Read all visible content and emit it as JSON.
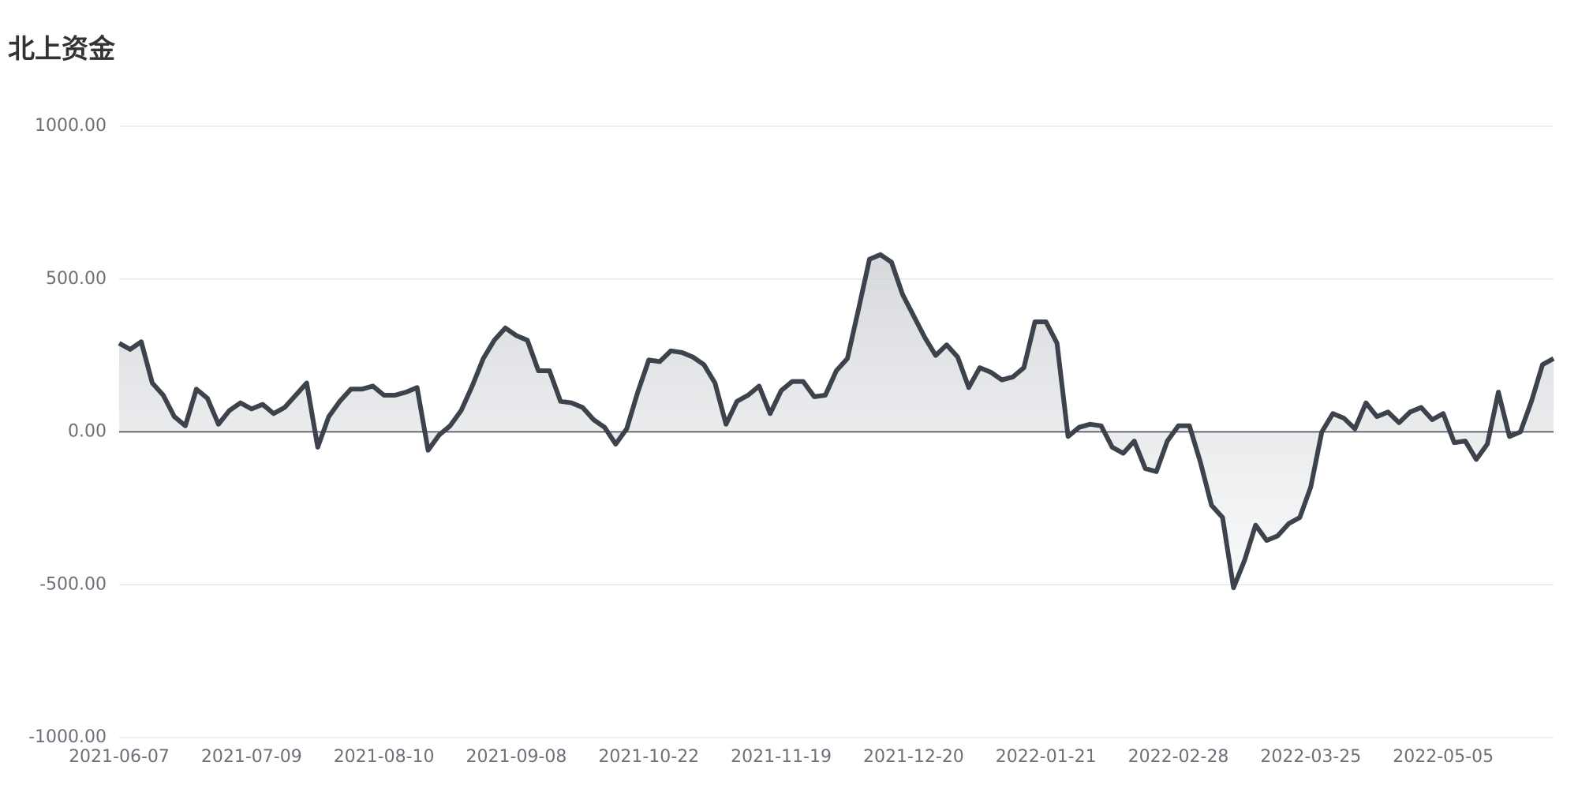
{
  "chart_data": {
    "type": "line",
    "title": "北上资金",
    "color": "#3c434c",
    "area": true,
    "grid": true,
    "ylim": [
      -1000,
      1000
    ],
    "yticks": [
      {
        "value": -1000,
        "label": "-1000.00"
      },
      {
        "value": -500,
        "label": "-500.00"
      },
      {
        "value": 0,
        "label": "0.00"
      },
      {
        "value": 500,
        "label": "500.00"
      },
      {
        "value": 1000,
        "label": "1000.00"
      }
    ],
    "categories": [
      "2021-06-07",
      null,
      null,
      null,
      null,
      null,
      null,
      null,
      null,
      null,
      null,
      null,
      "2021-07-09",
      null,
      null,
      null,
      null,
      null,
      null,
      null,
      null,
      null,
      null,
      null,
      "2021-08-10",
      null,
      null,
      null,
      null,
      null,
      null,
      null,
      null,
      null,
      null,
      null,
      "2021-09-08",
      null,
      null,
      null,
      null,
      null,
      null,
      null,
      null,
      null,
      null,
      null,
      "2021-10-22",
      null,
      null,
      null,
      null,
      null,
      null,
      null,
      null,
      null,
      null,
      null,
      "2021-11-19",
      null,
      null,
      null,
      null,
      null,
      null,
      null,
      null,
      null,
      null,
      null,
      "2021-12-20",
      null,
      null,
      null,
      null,
      null,
      null,
      null,
      null,
      null,
      null,
      null,
      "2022-01-21",
      null,
      null,
      null,
      null,
      null,
      null,
      null,
      null,
      null,
      null,
      null,
      "2022-02-28",
      null,
      null,
      null,
      null,
      null,
      null,
      null,
      null,
      null,
      null,
      null,
      "2022-03-25",
      null,
      null,
      null,
      null,
      null,
      null,
      null,
      null,
      null,
      null,
      null,
      "2022-05-05",
      null,
      null,
      null,
      null,
      null,
      null,
      null,
      null,
      null,
      null
    ],
    "values": [
      290,
      270,
      295,
      160,
      120,
      50,
      20,
      140,
      110,
      25,
      70,
      95,
      75,
      90,
      60,
      80,
      120,
      160,
      -50,
      50,
      100,
      140,
      140,
      150,
      120,
      120,
      130,
      145,
      -60,
      -10,
      20,
      70,
      150,
      240,
      300,
      340,
      315,
      300,
      200,
      200,
      100,
      95,
      80,
      40,
      15,
      -40,
      10,
      130,
      235,
      230,
      265,
      260,
      245,
      220,
      160,
      25,
      100,
      120,
      150,
      60,
      135,
      165,
      165,
      115,
      120,
      200,
      240,
      400,
      565,
      580,
      555,
      450,
      380,
      310,
      250,
      285,
      245,
      145,
      210,
      195,
      170,
      180,
      210,
      360,
      360,
      290,
      -15,
      15,
      25,
      20,
      -50,
      -70,
      -30,
      -120,
      -130,
      -30,
      20,
      20,
      -100,
      -240,
      -280,
      -510,
      -420,
      -305,
      -355,
      -340,
      -300,
      -280,
      -180,
      0,
      60,
      45,
      10,
      95,
      50,
      65,
      30,
      65,
      80,
      40,
      60,
      -35,
      -30,
      -90,
      -40,
      130,
      -15,
      0,
      100,
      220,
      240
    ]
  }
}
